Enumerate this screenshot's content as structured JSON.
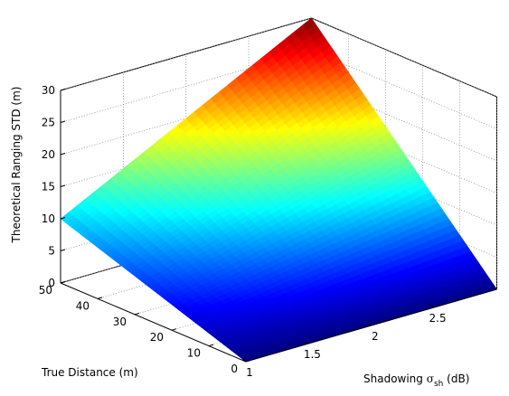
{
  "chart_data": {
    "type": "surface3d",
    "colormap": "jet",
    "grid": true,
    "zlabel": "Theoretical Ranging STD (m)",
    "ylabel": "True Distance (m)",
    "xlabel": {
      "prefix": "Shadowing ",
      "symbol": "σ",
      "subscript": "sh",
      "suffix": " (dB)"
    },
    "xlim": [
      1,
      3
    ],
    "ylim": [
      0,
      50
    ],
    "zlim": [
      0,
      30
    ],
    "x_ticks": [
      "1",
      "1.5",
      "2",
      "2.5"
    ],
    "x_tick_values": [
      1,
      1.5,
      2,
      2.5
    ],
    "y_ticks": [
      "0",
      "10",
      "20",
      "30",
      "40",
      "50"
    ],
    "y_tick_values": [
      0,
      10,
      20,
      30,
      40,
      50
    ],
    "z_ticks": [
      "0",
      "5",
      "10",
      "15",
      "20",
      "25",
      "30"
    ],
    "z_tick_values": [
      0,
      5,
      10,
      15,
      20,
      25,
      30
    ],
    "surface_corners": [
      {
        "sigma": 1,
        "distance": 0,
        "std": 0
      },
      {
        "sigma": 3,
        "distance": 0,
        "std": 0
      },
      {
        "sigma": 1,
        "distance": 50,
        "std": 10
      },
      {
        "sigma": 3,
        "distance": 50,
        "std": 30
      }
    ]
  }
}
